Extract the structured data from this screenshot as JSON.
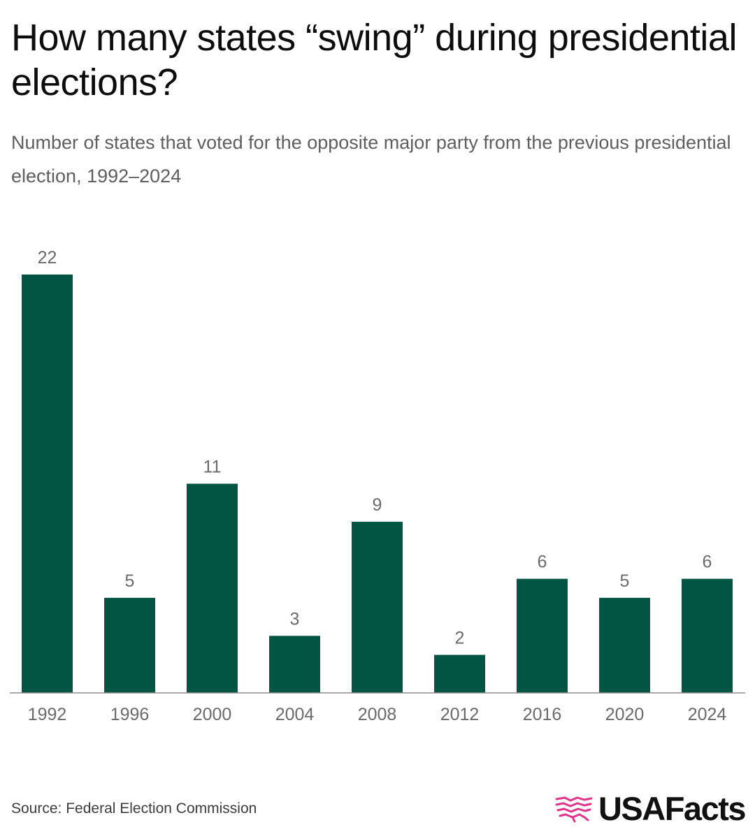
{
  "title": "How many states “swing” during presidential elections?",
  "subtitle": "Number of states that voted for the opposite major party from the previous presidential election, 1992–2024",
  "source": "Source: Federal Election Commission",
  "brand": "USAFacts",
  "colors": {
    "bar": "#025443",
    "brand_accent": "#e0338c",
    "label": "#6a6a6a"
  },
  "chart_data": {
    "type": "bar",
    "title": "How many states “swing” during presidential elections?",
    "xlabel": "",
    "ylabel": "",
    "categories": [
      "1992",
      "1996",
      "2000",
      "2004",
      "2008",
      "2012",
      "2016",
      "2020",
      "2024"
    ],
    "values": [
      22,
      5,
      11,
      3,
      9,
      2,
      6,
      5,
      6
    ],
    "ylim": [
      0,
      22
    ],
    "grid": false,
    "legend": "none"
  }
}
